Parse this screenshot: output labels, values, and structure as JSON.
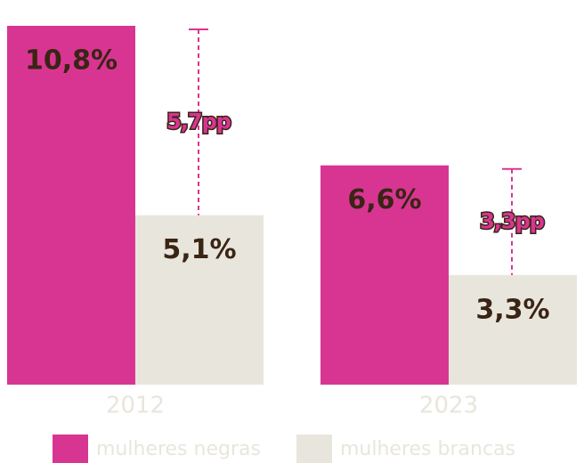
{
  "chart_data": {
    "type": "bar",
    "categories": [
      "2012",
      "2023"
    ],
    "series": [
      {
        "name": "mulheres negras",
        "color": "#d83593",
        "values": [
          10.8,
          6.6
        ],
        "value_labels": [
          "10,8%",
          "6,6%"
        ]
      },
      {
        "name": "mulheres brancas",
        "color": "#e8e6dc",
        "values": [
          5.1,
          3.3
        ],
        "value_labels": [
          "5,1%",
          "3,3%"
        ]
      }
    ],
    "gaps": [
      {
        "value": 5.7,
        "label": "5,7pp"
      },
      {
        "value": 3.3,
        "label": "3,3pp"
      }
    ],
    "gap_color": "#d83593"
  }
}
